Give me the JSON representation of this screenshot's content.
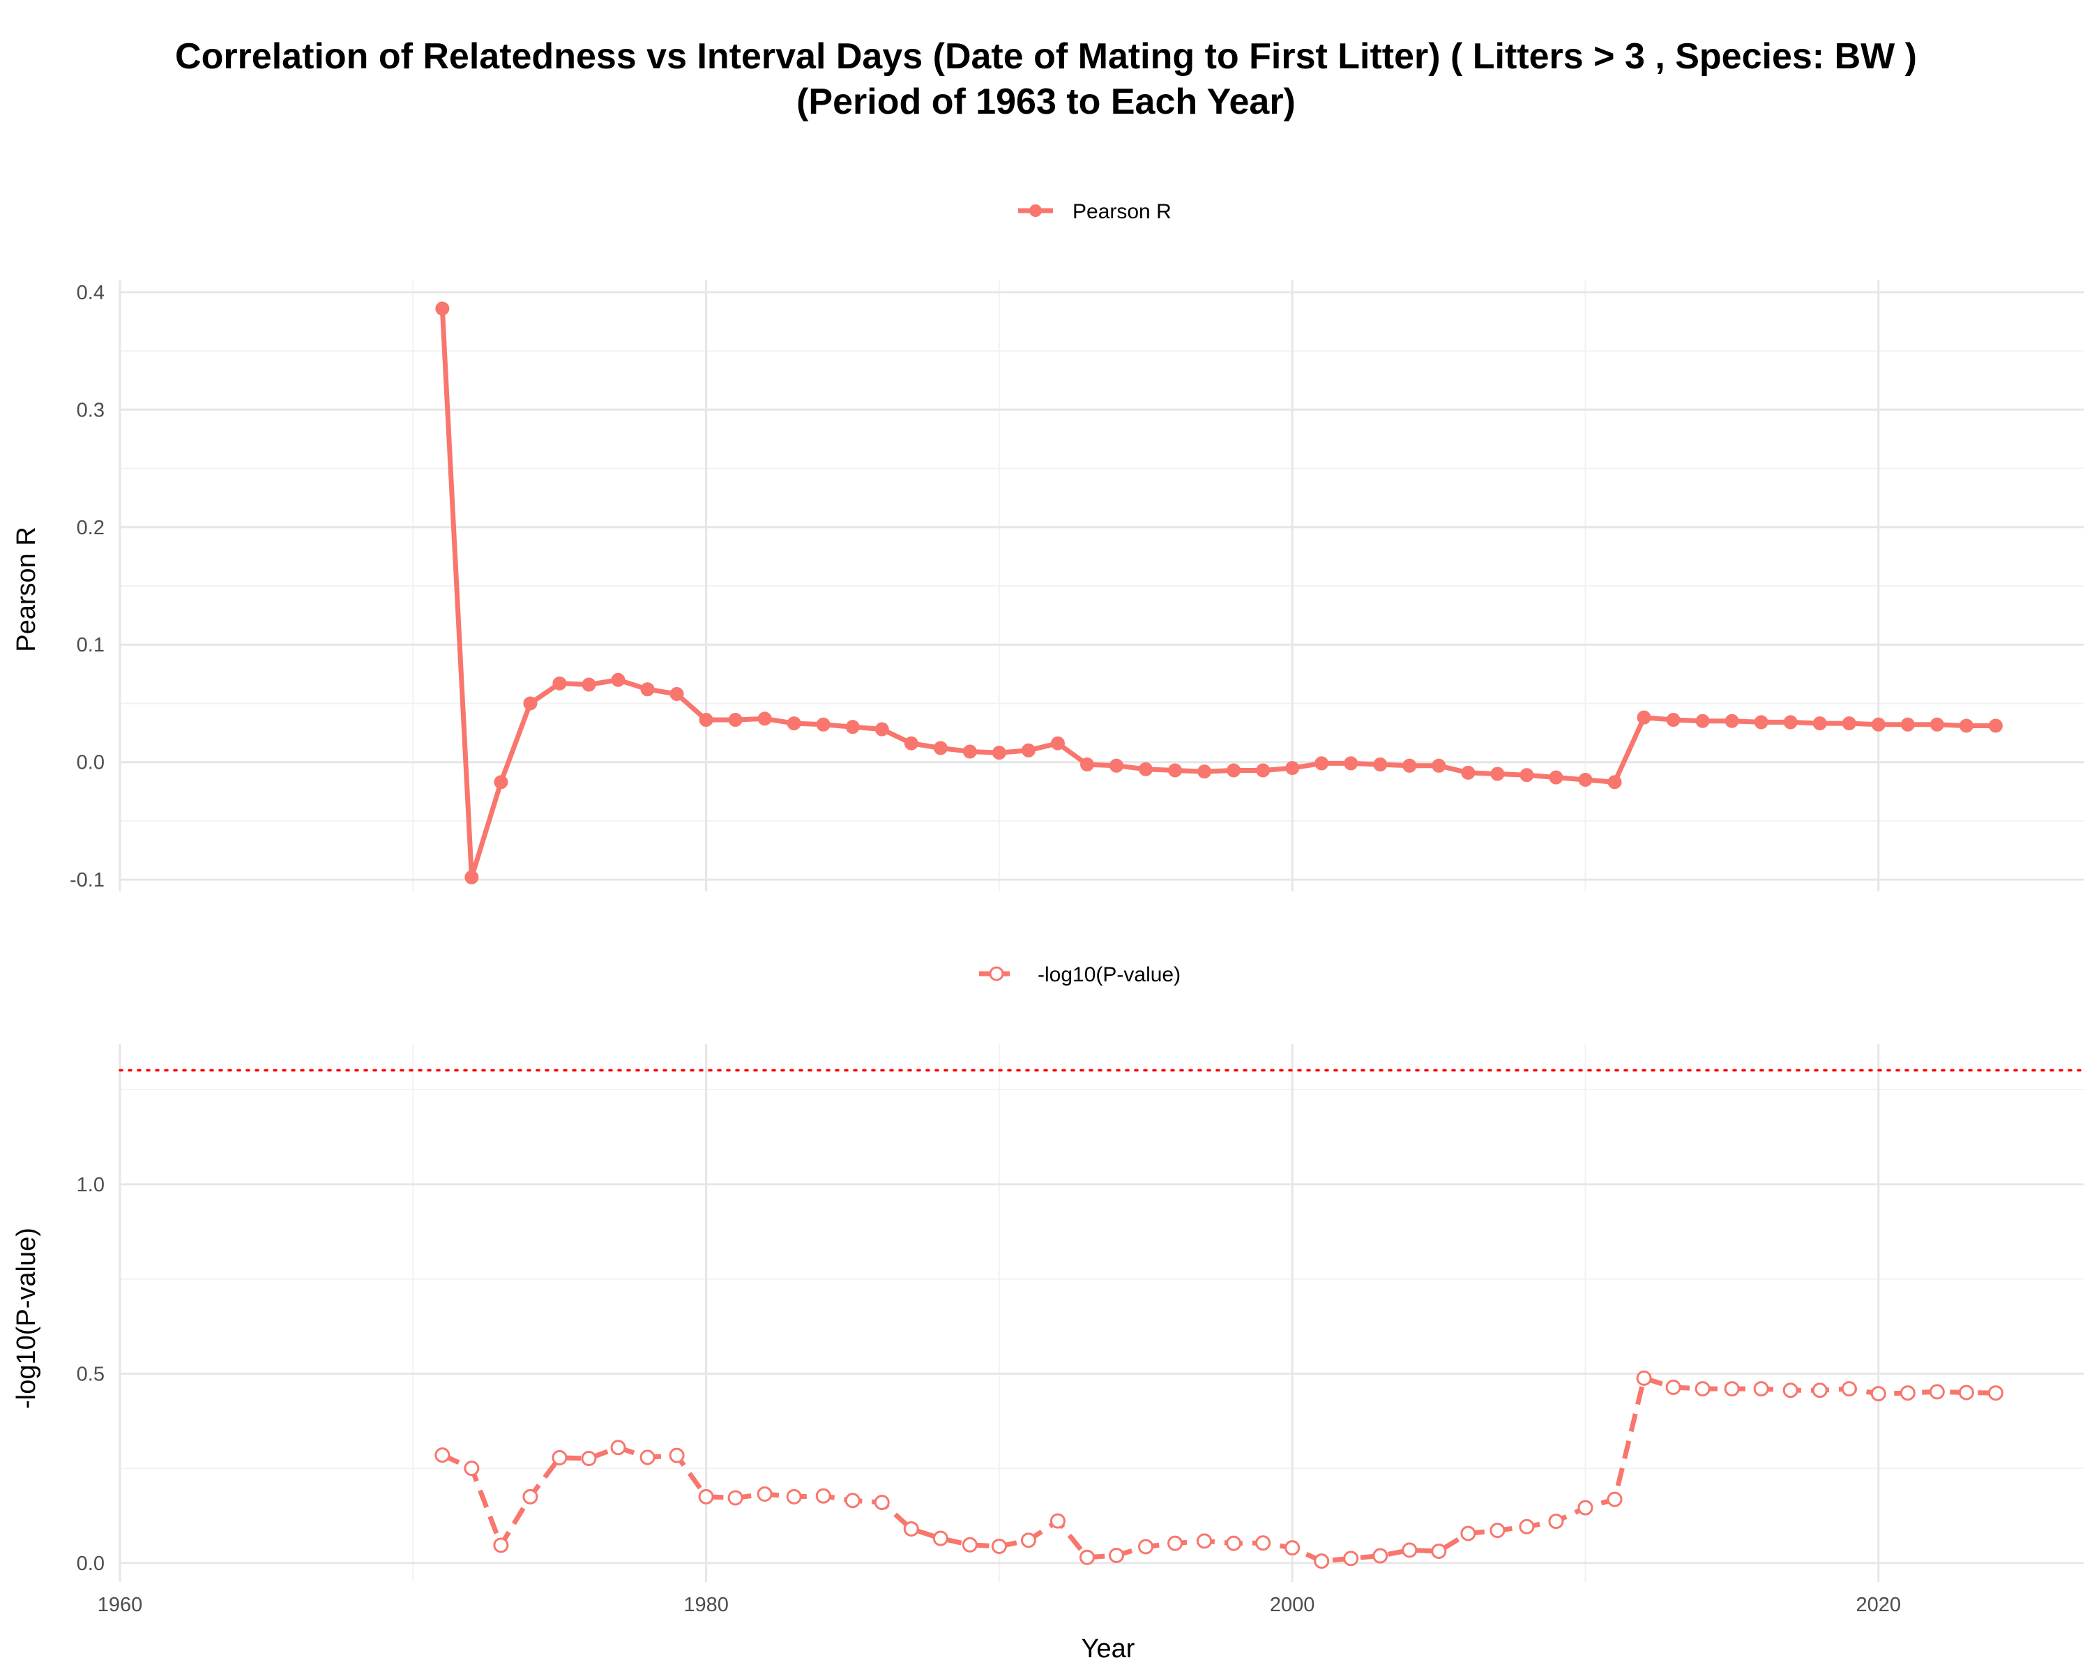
{
  "chart_data": {
    "type": "line",
    "title_line1": "Correlation of Relatedness vs Interval Days (Date of Mating to First Litter) ( Litters > 3 , Species: BW )",
    "title_line2": "(Period of 1963 to Each Year)",
    "xlabel": "Year",
    "xlim": [
      1960,
      2027
    ],
    "x_ticks": [
      1960,
      1980,
      2000,
      2020
    ],
    "x_tick_labels": [
      "1960",
      "1980",
      "2000",
      "2020"
    ],
    "line_color": "#F8766D",
    "threshold_color": "#FF0000",
    "panels": [
      {
        "name": "pearson-r",
        "ylabel": "Pearson R",
        "legend_label": "Pearson R",
        "legend_position": "top",
        "marker": "filled-circle",
        "line_style": "solid",
        "ylim": [
          -0.11,
          0.41
        ],
        "y_ticks": [
          -0.1,
          0.0,
          0.1,
          0.2,
          0.3,
          0.4
        ],
        "y_tick_labels": [
          "-0.1",
          "0.0",
          "0.1",
          "0.2",
          "0.3",
          "0.4"
        ],
        "x": [
          1971,
          1972,
          1973,
          1974,
          1975,
          1976,
          1977,
          1978,
          1979,
          1980,
          1981,
          1982,
          1983,
          1984,
          1985,
          1986,
          1987,
          1988,
          1989,
          1990,
          1991,
          1992,
          1993,
          1994,
          1995,
          1996,
          1997,
          1998,
          1999,
          2000,
          2001,
          2002,
          2003,
          2004,
          2005,
          2006,
          2007,
          2008,
          2009,
          2010,
          2011,
          2012,
          2013,
          2014,
          2015,
          2016,
          2017,
          2018,
          2019,
          2020,
          2021,
          2022,
          2023,
          2024
        ],
        "values": [
          0.386,
          -0.098,
          -0.017,
          0.05,
          0.067,
          0.066,
          0.07,
          0.062,
          0.058,
          0.036,
          0.036,
          0.037,
          0.033,
          0.032,
          0.03,
          0.028,
          0.016,
          0.012,
          0.009,
          0.008,
          0.01,
          0.016,
          -0.002,
          -0.003,
          -0.006,
          -0.007,
          -0.008,
          -0.007,
          -0.007,
          -0.005,
          -0.001,
          -0.001,
          -0.002,
          -0.003,
          -0.003,
          -0.009,
          -0.01,
          -0.011,
          -0.013,
          -0.015,
          -0.017,
          0.038,
          0.036,
          0.035,
          0.035,
          0.034,
          0.034,
          0.033,
          0.033,
          0.032,
          0.032,
          0.032,
          0.031,
          0.031
        ]
      },
      {
        "name": "neg-log10-p",
        "ylabel": "-log10(P-value)",
        "legend_label": "-log10(P-value)",
        "legend_position": "top",
        "marker": "open-circle",
        "line_style": "dashed",
        "ylim": [
          -0.05,
          1.37
        ],
        "y_ticks": [
          0.0,
          0.5,
          1.0
        ],
        "y_tick_labels": [
          "0.0",
          "0.5",
          "1.0"
        ],
        "threshold": 1.301,
        "threshold_style": "dotted",
        "x": [
          1971,
          1972,
          1973,
          1974,
          1975,
          1976,
          1977,
          1978,
          1979,
          1980,
          1981,
          1982,
          1983,
          1984,
          1985,
          1986,
          1987,
          1988,
          1989,
          1990,
          1991,
          1992,
          1993,
          1994,
          1995,
          1996,
          1997,
          1998,
          1999,
          2000,
          2001,
          2002,
          2003,
          2004,
          2005,
          2006,
          2007,
          2008,
          2009,
          2010,
          2011,
          2012,
          2013,
          2014,
          2015,
          2016,
          2017,
          2018,
          2019,
          2020,
          2021,
          2022,
          2023,
          2024
        ],
        "values": [
          0.285,
          0.25,
          0.047,
          0.175,
          0.278,
          0.276,
          0.305,
          0.279,
          0.284,
          0.175,
          0.172,
          0.182,
          0.175,
          0.177,
          0.165,
          0.16,
          0.09,
          0.065,
          0.048,
          0.044,
          0.06,
          0.111,
          0.015,
          0.02,
          0.043,
          0.052,
          0.058,
          0.052,
          0.053,
          0.04,
          0.005,
          0.012,
          0.019,
          0.034,
          0.031,
          0.078,
          0.086,
          0.096,
          0.11,
          0.146,
          0.168,
          0.488,
          0.464,
          0.46,
          0.46,
          0.46,
          0.456,
          0.456,
          0.46,
          0.447,
          0.449,
          0.452,
          0.45,
          0.449
        ]
      }
    ]
  }
}
